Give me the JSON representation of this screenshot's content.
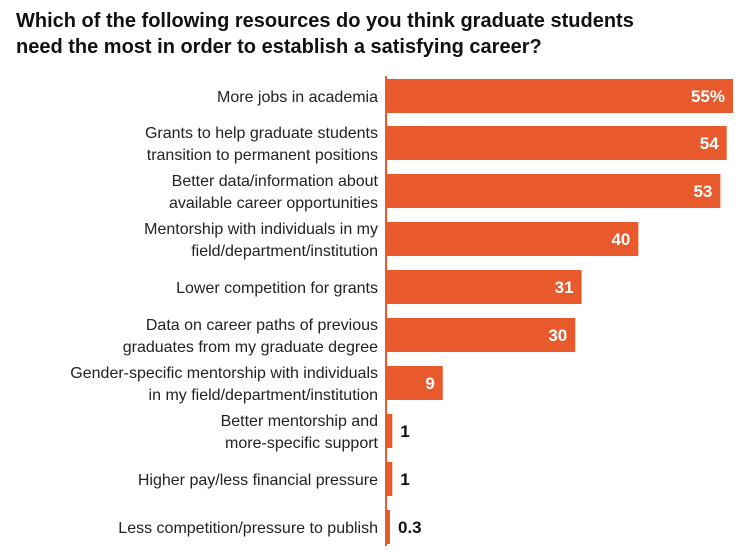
{
  "title_lines": [
    "Which of the following resources do you think graduate students",
    "need the most in order to establish a satisfying career?"
  ],
  "colors": {
    "bar": "#e8592b",
    "value_inside": "#ffffff",
    "value_outside": "#111111",
    "axis": "#e8592b"
  },
  "chart_data": {
    "type": "bar",
    "orientation": "horizontal",
    "title": "Which of the following resources do you think graduate students need the most in order to establish a satisfying career?",
    "unit": "%",
    "categories": [
      [
        "More jobs in academia"
      ],
      [
        "Grants to help graduate students",
        "transition to permanent positions"
      ],
      [
        "Better data/information about",
        "available career opportunities"
      ],
      [
        "Mentorship with individuals in my",
        "field/department/institution"
      ],
      [
        "Lower competition for grants"
      ],
      [
        "Data on career paths of previous",
        "graduates from my graduate degree"
      ],
      [
        "Gender-specific mentorship with individuals",
        "in my field/department/institution"
      ],
      [
        "Better mentorship and",
        "more-specific support"
      ],
      [
        "Higher pay/less financial pressure"
      ],
      [
        "Less competition/pressure to publish"
      ]
    ],
    "values": [
      55,
      54,
      53,
      40,
      31,
      30,
      9,
      1,
      1,
      0.3
    ],
    "value_labels": [
      "55%",
      "54",
      "53",
      "40",
      "31",
      "30",
      "9",
      "1",
      "1",
      "0.3"
    ],
    "xlim": [
      0,
      55
    ]
  }
}
